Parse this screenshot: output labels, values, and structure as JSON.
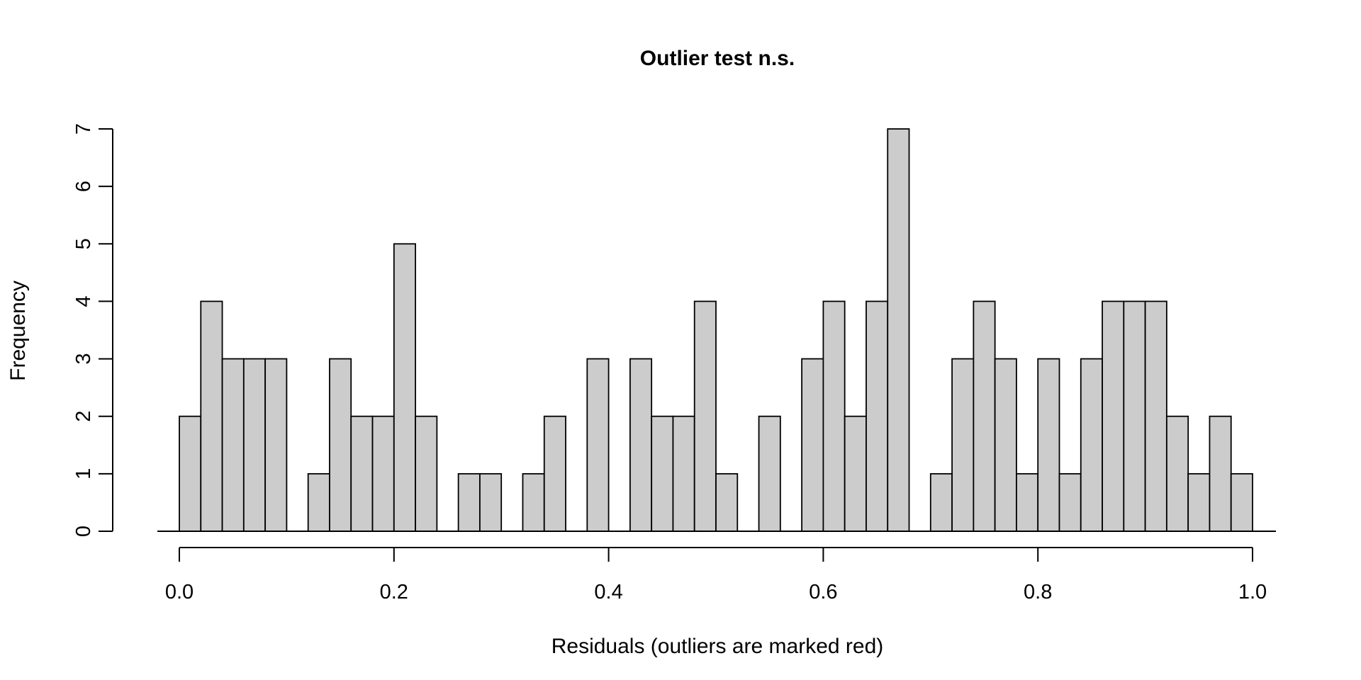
{
  "chart_data": {
    "type": "bar",
    "title": "Outlier test n.s.",
    "xlabel": "Residuals (outliers are marked red)",
    "ylabel": "Frequency",
    "bin_width": 0.02,
    "bin_start": 0.0,
    "values": [
      2,
      4,
      3,
      3,
      3,
      0,
      1,
      3,
      2,
      2,
      5,
      2,
      0,
      1,
      1,
      0,
      1,
      2,
      0,
      3,
      0,
      3,
      2,
      2,
      4,
      1,
      0,
      2,
      0,
      3,
      4,
      2,
      4,
      7,
      0,
      1,
      3,
      4,
      3,
      1,
      3,
      1,
      3,
      4,
      4,
      4,
      2,
      1,
      2,
      1
    ],
    "xlim": [
      0.0,
      1.0
    ],
    "ylim": [
      0,
      7
    ],
    "x_ticks": [
      0.0,
      0.2,
      0.4,
      0.6,
      0.8,
      1.0
    ],
    "x_tick_labels": [
      "0.0",
      "0.2",
      "0.4",
      "0.6",
      "0.8",
      "1.0"
    ],
    "y_ticks": [
      0,
      1,
      2,
      3,
      4,
      5,
      6,
      7
    ],
    "y_tick_labels": [
      "0",
      "1",
      "2",
      "3",
      "4",
      "5",
      "6",
      "7"
    ],
    "bar_color": "#cccccc",
    "edge_color": "#000000",
    "grid": false
  }
}
